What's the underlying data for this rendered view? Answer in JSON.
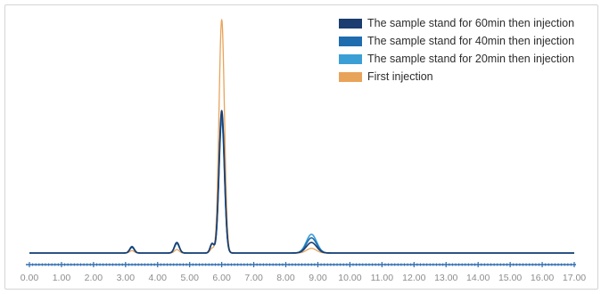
{
  "chart_data": {
    "type": "line",
    "title": "",
    "xlabel": "",
    "ylabel": "",
    "xlim": [
      0,
      17
    ],
    "ylim": [
      0,
      100
    ],
    "x_ticks": [
      "0.00",
      "1.00",
      "2.00",
      "3.00",
      "4.00",
      "5.00",
      "6.00",
      "7.00",
      "8.00",
      "9.00",
      "10.00",
      "11.00",
      "12.00",
      "13.00",
      "14.00",
      "15.00",
      "16.00",
      "17.00"
    ],
    "legend_position": "top-right",
    "grid": false,
    "series": [
      {
        "name": "First injection",
        "color": "#e8a35a",
        "peaks": [
          {
            "x": 3.2,
            "height": 1.0,
            "width": 0.07
          },
          {
            "x": 4.6,
            "height": 1.5,
            "width": 0.07
          },
          {
            "x": 5.7,
            "height": 2.0,
            "width": 0.06
          },
          {
            "x": 6.0,
            "height": 100,
            "width": 0.085
          },
          {
            "x": 8.8,
            "height": 2.0,
            "width": 0.15
          }
        ]
      },
      {
        "name": "The sample stand for 20min then injection",
        "color": "#3b9fd6",
        "peaks": [
          {
            "x": 3.2,
            "height": 2.5,
            "width": 0.07
          },
          {
            "x": 4.6,
            "height": 4.0,
            "width": 0.075
          },
          {
            "x": 5.7,
            "height": 4.0,
            "width": 0.06
          },
          {
            "x": 6.0,
            "height": 57,
            "width": 0.085
          },
          {
            "x": 8.8,
            "height": 8.0,
            "width": 0.16
          }
        ]
      },
      {
        "name": "The sample stand for 40min then injection",
        "color": "#1f6cae",
        "peaks": [
          {
            "x": 3.2,
            "height": 2.8,
            "width": 0.07
          },
          {
            "x": 4.6,
            "height": 4.5,
            "width": 0.075
          },
          {
            "x": 5.7,
            "height": 4.0,
            "width": 0.06
          },
          {
            "x": 6.0,
            "height": 59,
            "width": 0.085
          },
          {
            "x": 8.8,
            "height": 6.5,
            "width": 0.16
          }
        ]
      },
      {
        "name": "The sample stand for 60min then injection",
        "color": "#1b3d70",
        "peaks": [
          {
            "x": 3.2,
            "height": 2.5,
            "width": 0.07
          },
          {
            "x": 4.6,
            "height": 4.5,
            "width": 0.075
          },
          {
            "x": 5.7,
            "height": 4.0,
            "width": 0.06
          },
          {
            "x": 6.0,
            "height": 61,
            "width": 0.085
          },
          {
            "x": 8.8,
            "height": 4.5,
            "width": 0.16
          }
        ]
      }
    ],
    "legend_order": [
      3,
      2,
      1,
      0
    ]
  }
}
